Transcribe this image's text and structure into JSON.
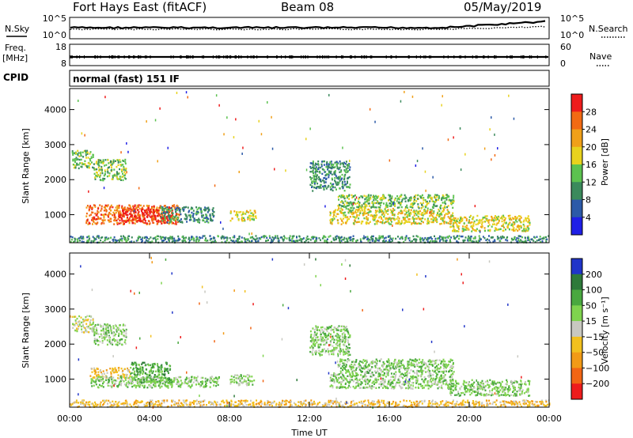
{
  "header": {
    "station": "Fort Hays East (fitACF)",
    "beam": "Beam 08",
    "date": "05/May/2019"
  },
  "strips": {
    "nsky": {
      "label": "N.Sky",
      "left_top_tick": "10^5",
      "left_bottom_tick": "10^0",
      "right_top_tick": "10^5",
      "right_bottom_tick": "10^0",
      "right_label": "N.Search"
    },
    "freq": {
      "label_line1": "Freq.",
      "label_line2": "[MHz]",
      "left_top_tick": "18",
      "left_bottom_tick": "8",
      "right_top_tick": "60",
      "right_bottom_tick": "0",
      "right_label": "Nave"
    },
    "cpid": {
      "label": "CPID",
      "mode": "normal (fast) 151 IF"
    }
  },
  "chart_data": [
    {
      "type": "heatmap",
      "panel": "power",
      "ylabel": "Slant Range [km]",
      "xlabel": "",
      "ylim": [
        200,
        4600
      ],
      "yticks": [
        "1000",
        "2000",
        "3000",
        "4000"
      ],
      "ytick_values": [
        1000,
        2000,
        3000,
        4000
      ],
      "colorbar": {
        "label": "Power [dB]",
        "ticks": [
          "4",
          "8",
          "12",
          "16",
          "20",
          "24",
          "28"
        ],
        "tick_values": [
          4,
          8,
          12,
          16,
          20,
          24,
          28
        ],
        "range": [
          0,
          32
        ],
        "colors": [
          "#1f1fe6",
          "#2c5aa8",
          "#3b8a5c",
          "#5cc24f",
          "#e8d21d",
          "#f0a019",
          "#f26a13",
          "#ee1c1c"
        ]
      },
      "echo_regions": [
        {
          "t": [
            0.1,
            1.2
          ],
          "r": [
            2350,
            2850
          ],
          "level": "12"
        },
        {
          "t": [
            1.2,
            2.8
          ],
          "r": [
            2000,
            2600
          ],
          "level": "12"
        },
        {
          "t": [
            0.8,
            5.5
          ],
          "r": [
            750,
            1300
          ],
          "level": "24"
        },
        {
          "t": [
            2.4,
            4.9
          ],
          "r": [
            780,
            1180
          ],
          "level": "28"
        },
        {
          "t": [
            4.5,
            7.2
          ],
          "r": [
            800,
            1250
          ],
          "level": "8"
        },
        {
          "t": [
            8.0,
            9.3
          ],
          "r": [
            850,
            1150
          ],
          "level": "16"
        },
        {
          "t": [
            12.0,
            14.0
          ],
          "r": [
            1700,
            2550
          ],
          "level": "8"
        },
        {
          "t": [
            13.4,
            19.2
          ],
          "r": [
            1200,
            1600
          ],
          "level": "12"
        },
        {
          "t": [
            13.0,
            19.2
          ],
          "r": [
            750,
            1200
          ],
          "level": "16"
        },
        {
          "t": [
            19.0,
            23.0
          ],
          "r": [
            550,
            1000
          ],
          "level": "16"
        },
        {
          "t": [
            0.0,
            24.0
          ],
          "r": [
            230,
            420
          ],
          "level": "8"
        }
      ]
    },
    {
      "type": "heatmap",
      "panel": "velocity",
      "ylabel": "Slant Range [km]",
      "xlabel": "Time UT",
      "ylim": [
        200,
        4600
      ],
      "yticks": [
        "1000",
        "2000",
        "3000",
        "4000"
      ],
      "ytick_values": [
        1000,
        2000,
        3000,
        4000
      ],
      "xticks": [
        "00:00",
        "04:00",
        "08:00",
        "12:00",
        "16:00",
        "20:00",
        "00:00"
      ],
      "xtick_values": [
        0,
        4,
        8,
        12,
        16,
        20,
        24
      ],
      "colorbar": {
        "label": "Velocity [m s⁻¹]",
        "ticks": [
          "200",
          "100",
          "50",
          "15",
          "−15",
          "−50",
          "−100",
          "−200"
        ],
        "tick_values": [
          200,
          100,
          50,
          15,
          -15,
          -50,
          -100,
          -200
        ],
        "range": [
          -250,
          250
        ],
        "colors": [
          "#2035c9",
          "#2e7a3a",
          "#49a83f",
          "#7fd34e",
          "#c8c8c0",
          "#f2c01e",
          "#f29a16",
          "#f26514",
          "#ee1c1c"
        ]
      },
      "echo_regions": [
        {
          "t": [
            0.1,
            1.2
          ],
          "r": [
            2350,
            2850
          ],
          "level": "-15"
        },
        {
          "t": [
            1.2,
            2.8
          ],
          "r": [
            2000,
            2600
          ],
          "level": "15"
        },
        {
          "t": [
            1.0,
            3.0
          ],
          "r": [
            1050,
            1350
          ],
          "level": "-50"
        },
        {
          "t": [
            3.0,
            5.0
          ],
          "r": [
            900,
            1500
          ],
          "level": "50"
        },
        {
          "t": [
            1.0,
            7.5
          ],
          "r": [
            780,
            1100
          ],
          "level": "15"
        },
        {
          "t": [
            8.0,
            9.3
          ],
          "r": [
            850,
            1150
          ],
          "level": "15"
        },
        {
          "t": [
            12.0,
            14.0
          ],
          "r": [
            1700,
            2550
          ],
          "level": "15"
        },
        {
          "t": [
            13.4,
            19.2
          ],
          "r": [
            1200,
            1600
          ],
          "level": "15"
        },
        {
          "t": [
            13.0,
            19.2
          ],
          "r": [
            750,
            1200
          ],
          "level": "15"
        },
        {
          "t": [
            19.0,
            23.0
          ],
          "r": [
            550,
            1000
          ],
          "level": "15"
        },
        {
          "t": [
            0.0,
            24.0
          ],
          "r": [
            230,
            420
          ],
          "level": "-50"
        }
      ]
    }
  ]
}
